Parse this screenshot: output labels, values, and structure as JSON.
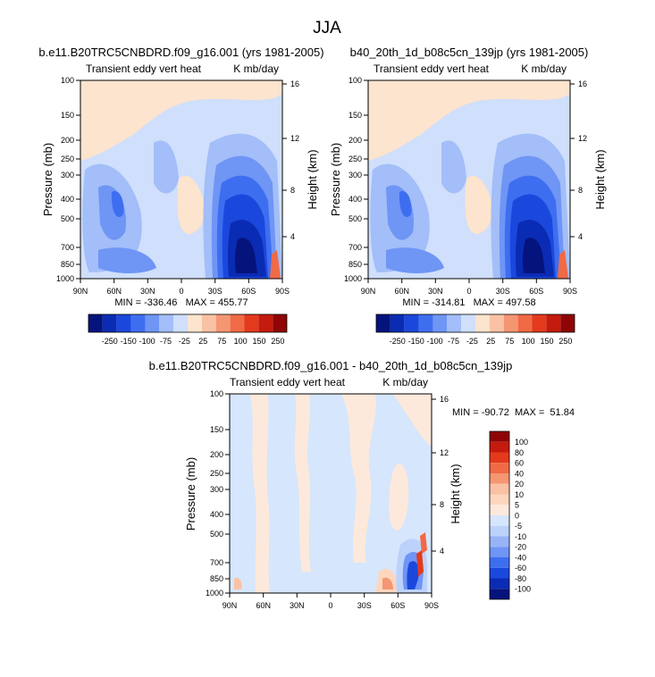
{
  "figure": {
    "title": "JJA"
  },
  "chart_data": [
    {
      "type": "heatmap",
      "title": "b.e11.B20TRC5CNBDRD.f09_g16.001 (yrs 1981-2005)",
      "subtitle_left": "Transient eddy vert heat",
      "subtitle_right": "K mb/day",
      "xlabel": "",
      "ylabel": "Pressure (mb)",
      "ylabel_right": "Height (km)",
      "x_ticks": [
        "90N",
        "60N",
        "30N",
        "0",
        "30S",
        "60S",
        "90S"
      ],
      "x_values": [
        90,
        60,
        30,
        0,
        -30,
        -60,
        -90
      ],
      "y_ticks": [
        "100",
        "150",
        "200",
        "250",
        "300",
        "400",
        "500",
        "700",
        "850",
        "1000"
      ],
      "y_values": [
        100,
        150,
        200,
        250,
        300,
        400,
        500,
        700,
        850,
        1000
      ],
      "y_right_ticks": [
        "16",
        "12",
        "8",
        "4"
      ],
      "y_right_values": [
        16,
        12,
        8,
        4
      ],
      "stats": "MIN = -336.46   MAX = 455.77",
      "colorbar": {
        "orientation": "horizontal",
        "labels": [
          "-250",
          "-150",
          "-100",
          "-75",
          "-25",
          "25",
          "75",
          "100",
          "150",
          "250"
        ],
        "colors": [
          "#05137d",
          "#0a2cb4",
          "#1b48dc",
          "#3e6ef0",
          "#6f95f5",
          "#a3bef8",
          "#cfdffc",
          "#fde4ce",
          "#fac2a4",
          "#f59673",
          "#f06a45",
          "#e33a1c",
          "#c51a0e",
          "#8f0505"
        ]
      }
    },
    {
      "type": "heatmap",
      "title": "b40_20th_1d_b08c5cn_139jp (yrs 1981-2005)",
      "subtitle_left": "Transient eddy vert heat",
      "subtitle_right": "K mb/day",
      "xlabel": "",
      "ylabel": "Pressure (mb)",
      "ylabel_right": "Height (km)",
      "x_ticks": [
        "90N",
        "60N",
        "30N",
        "0",
        "30S",
        "60S",
        "90S"
      ],
      "x_values": [
        90,
        60,
        30,
        0,
        -30,
        -60,
        -90
      ],
      "y_ticks": [
        "100",
        "150",
        "200",
        "250",
        "300",
        "400",
        "500",
        "700",
        "850",
        "1000"
      ],
      "y_values": [
        100,
        150,
        200,
        250,
        300,
        400,
        500,
        700,
        850,
        1000
      ],
      "y_right_ticks": [
        "16",
        "12",
        "8",
        "4"
      ],
      "y_right_values": [
        16,
        12,
        8,
        4
      ],
      "stats": "MIN = -314.81   MAX = 497.58",
      "colorbar": {
        "orientation": "horizontal",
        "labels": [
          "-250",
          "-150",
          "-100",
          "-75",
          "-25",
          "25",
          "75",
          "100",
          "150",
          "250"
        ],
        "colors": [
          "#05137d",
          "#0a2cb4",
          "#1b48dc",
          "#3e6ef0",
          "#6f95f5",
          "#a3bef8",
          "#cfdffc",
          "#fde4ce",
          "#fac2a4",
          "#f59673",
          "#f06a45",
          "#e33a1c",
          "#c51a0e",
          "#8f0505"
        ]
      }
    },
    {
      "type": "heatmap",
      "title": "b.e11.B20TRC5CNBDRD.f09_g16.001 - b40_20th_1d_b08c5cn_139jp",
      "subtitle_left": "Transient eddy vert heat",
      "subtitle_right": "K mb/day",
      "xlabel": "",
      "ylabel": "Pressure (mb)",
      "ylabel_right": "Height (km)",
      "x_ticks": [
        "90N",
        "60N",
        "30N",
        "0",
        "30S",
        "60S",
        "90S"
      ],
      "x_values": [
        90,
        60,
        30,
        0,
        -30,
        -60,
        -90
      ],
      "y_ticks": [
        "100",
        "150",
        "200",
        "250",
        "300",
        "400",
        "500",
        "700",
        "850",
        "1000"
      ],
      "y_values": [
        100,
        150,
        200,
        250,
        300,
        400,
        500,
        700,
        850,
        1000
      ],
      "y_right_ticks": [
        "16",
        "12",
        "8",
        "4"
      ],
      "y_right_values": [
        16,
        12,
        8,
        4
      ],
      "stats": "MIN = -90.72  MAX =  51.84",
      "colorbar": {
        "orientation": "vertical",
        "labels": [
          "100",
          "80",
          "60",
          "40",
          "20",
          "10",
          "5",
          "0",
          "-5",
          "-10",
          "-20",
          "-40",
          "-60",
          "-80",
          "-100"
        ],
        "colors": [
          "#8f0505",
          "#c51a0e",
          "#e33a1c",
          "#f06a45",
          "#f59673",
          "#fac2a4",
          "#fcd7bd",
          "#fde9db",
          "#d6e6fc",
          "#bcd2fa",
          "#96b4f6",
          "#6f95f5",
          "#3e6ef0",
          "#1b48dc",
          "#0a2cb4",
          "#05137d"
        ]
      }
    }
  ]
}
